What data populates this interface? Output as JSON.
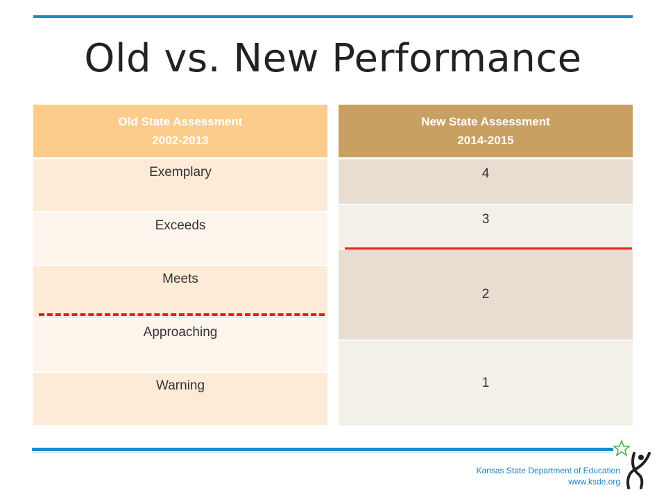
{
  "title": "Old vs. New Performance",
  "old_table": {
    "header_line1": "Old State Assessment",
    "header_line2": "2002-2013",
    "rows": [
      "Exemplary",
      "Exceeds",
      "Meets",
      "Approaching",
      "Warning"
    ]
  },
  "new_table": {
    "header_line1": "New State Assessment",
    "header_line2": "2014-2015",
    "rows": [
      "4",
      "3",
      "2",
      "1"
    ]
  },
  "footer": {
    "org": "Kansas State Department of Education",
    "url": "www.ksde.org"
  },
  "colors": {
    "accent_blue": "#1b8ccf",
    "cutoff_red": "#e8201c",
    "old_header": "#fbcc8a",
    "new_header": "#c8a062"
  }
}
